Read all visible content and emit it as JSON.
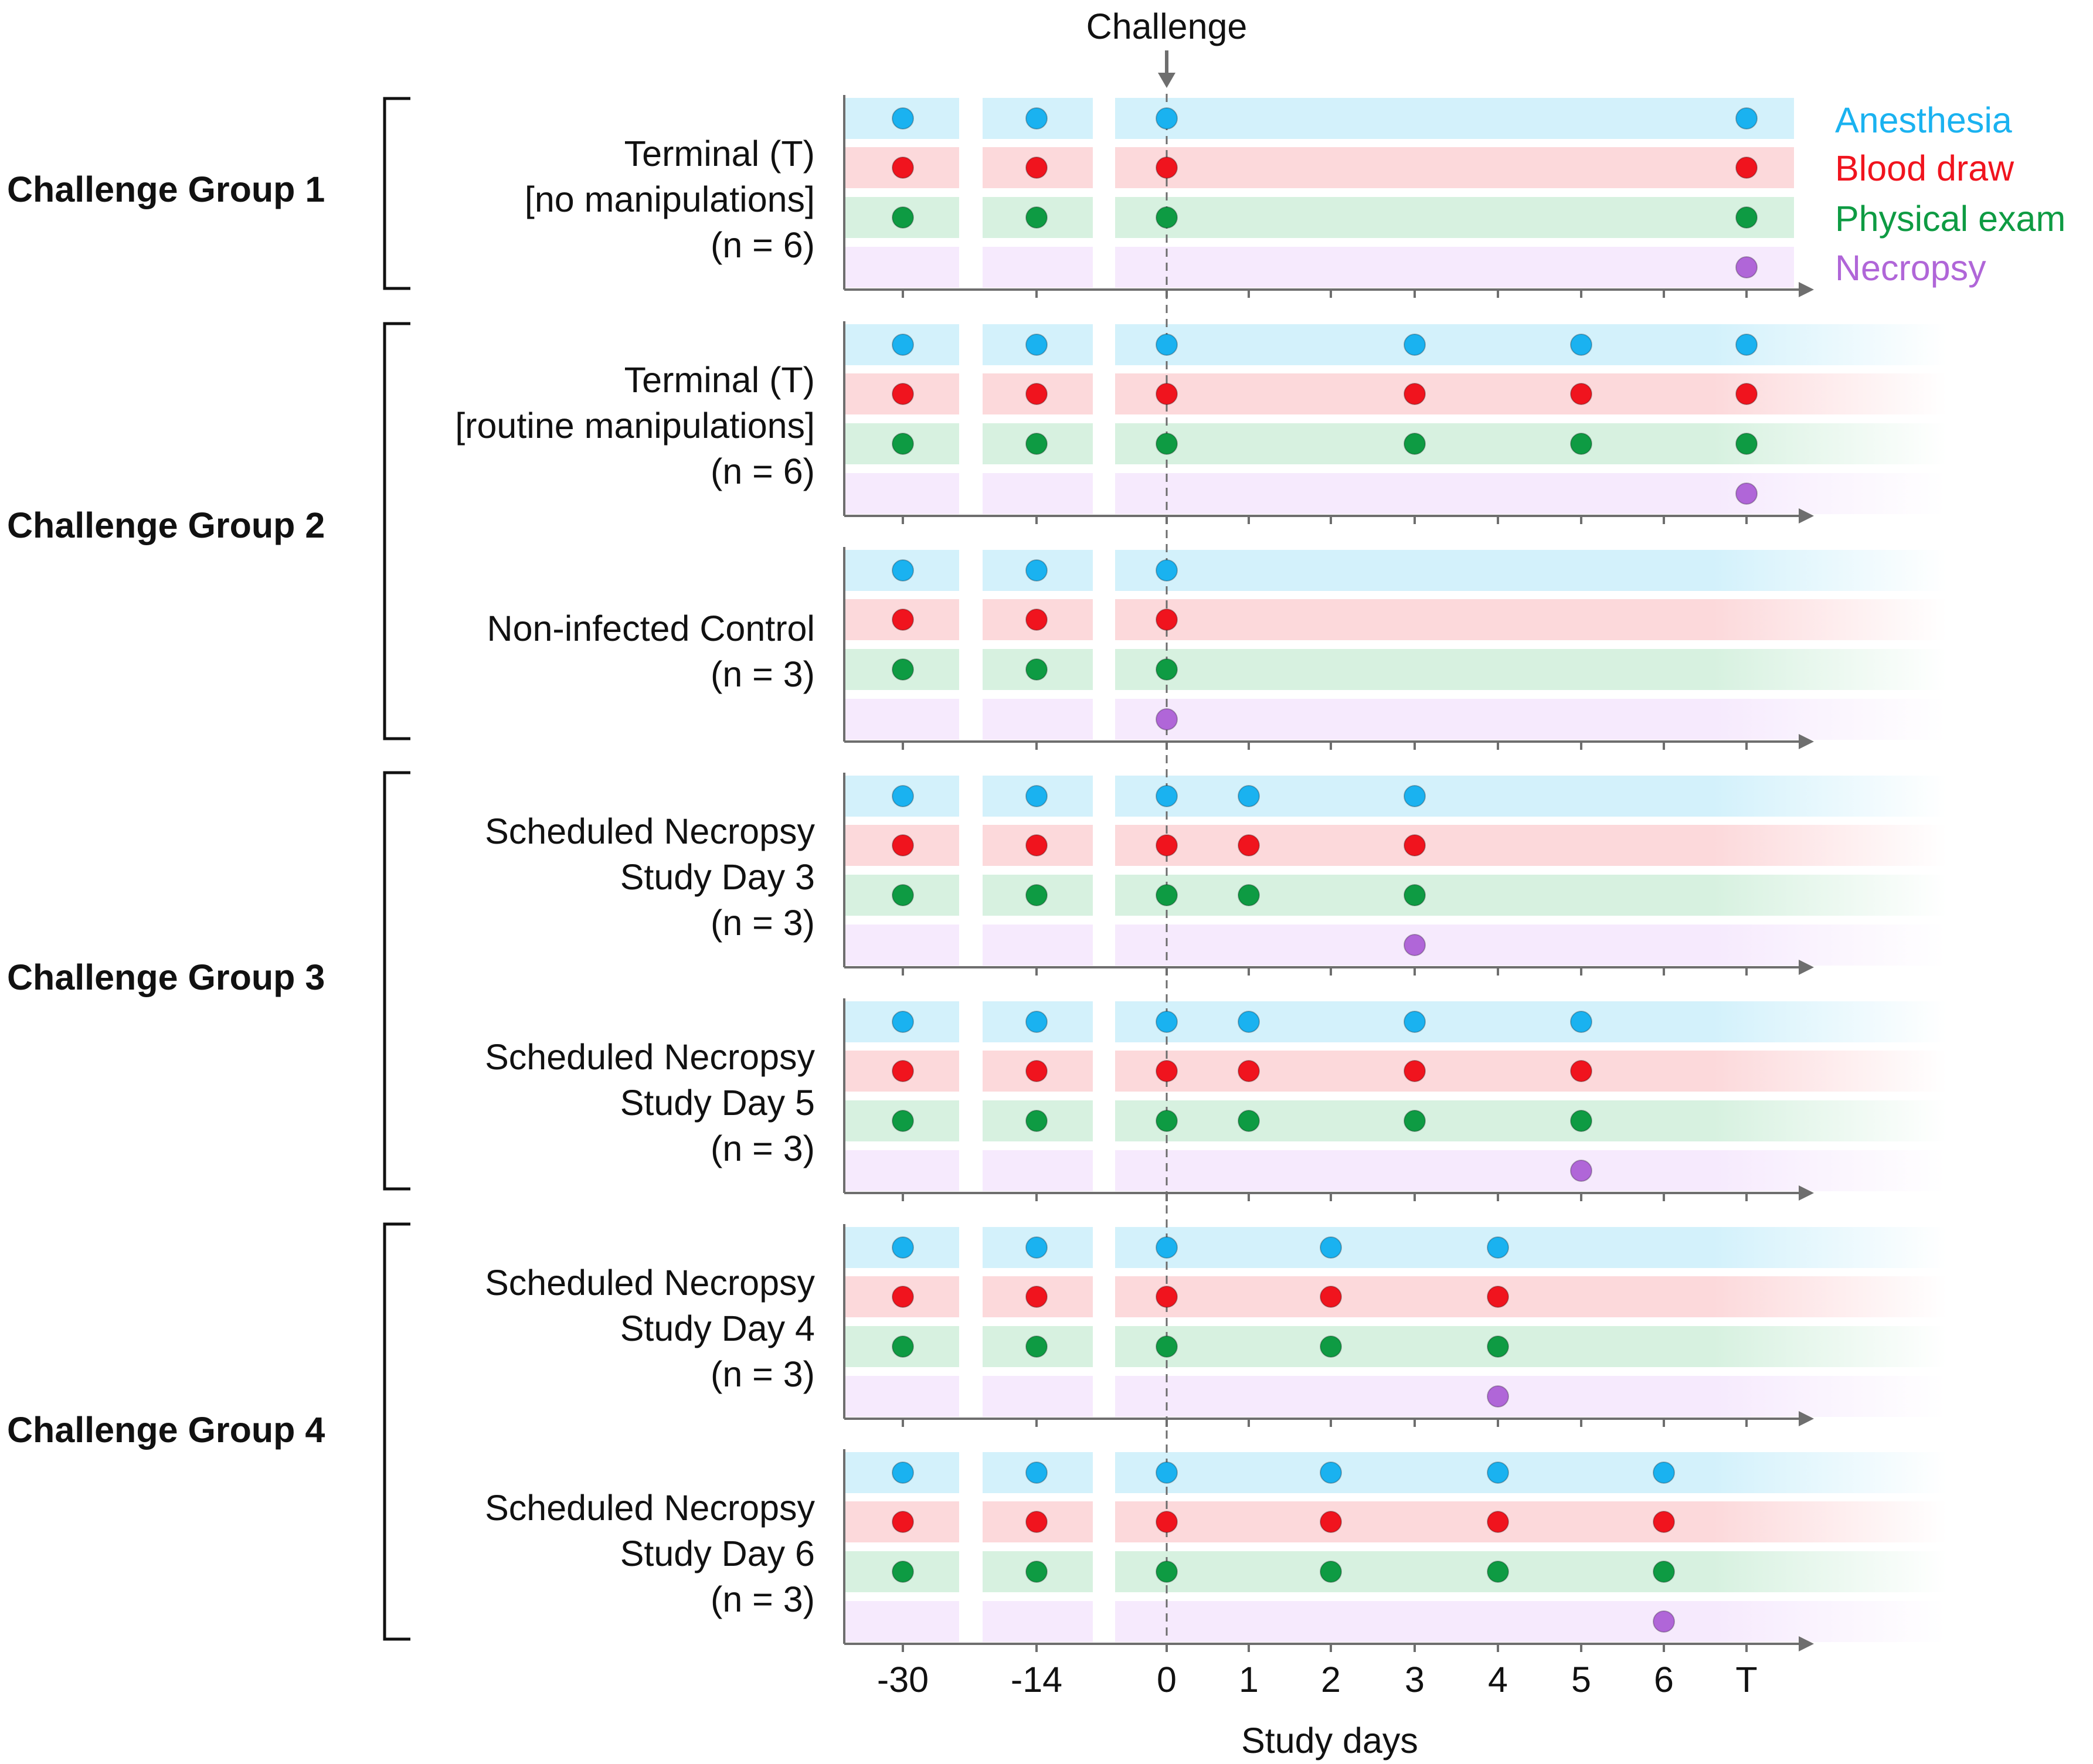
{
  "colors": {
    "anesthesia": "#1ab2f0",
    "blood_draw": "#f0141e",
    "physical_exam": "#0e9b43",
    "necropsy": "#b066d8",
    "anesthesia_band": "#d3f1fb",
    "blood_draw_band": "#fcd9db",
    "physical_exam_band": "#d7f1e0",
    "necropsy_band": "#f6eafd",
    "bracket": "#111111",
    "axis": "#6e6e6e"
  },
  "challenge": {
    "label": "Challenge",
    "day": "0"
  },
  "axis": {
    "title": "Study days",
    "ticks": [
      "-30",
      "-14",
      "0",
      "1",
      "2",
      "3",
      "4",
      "5",
      "6",
      "T"
    ]
  },
  "legend": [
    {
      "key": "anesthesia",
      "label": "Anesthesia",
      "icon": "circle-icon"
    },
    {
      "key": "blood_draw",
      "label": "Blood draw",
      "icon": "circle-icon"
    },
    {
      "key": "physical_exam",
      "label": "Physical exam",
      "icon": "circle-icon"
    },
    {
      "key": "necropsy",
      "label": "Necropsy",
      "icon": "circle-icon"
    }
  ],
  "procedure_rows": [
    "anesthesia",
    "blood_draw",
    "physical_exam",
    "necropsy"
  ],
  "groups": [
    {
      "label": "Challenge Group 1",
      "cohorts": [
        {
          "label_lines": [
            "Terminal (T)",
            "[no manipulations]",
            "(n = 6)"
          ],
          "fade": false,
          "events": {
            "anesthesia": [
              "-30",
              "-14",
              "0",
              "T"
            ],
            "blood_draw": [
              "-30",
              "-14",
              "0",
              "T"
            ],
            "physical_exam": [
              "-30",
              "-14",
              "0",
              "T"
            ],
            "necropsy": [
              "T"
            ]
          }
        }
      ]
    },
    {
      "label": "Challenge Group 2",
      "cohorts": [
        {
          "label_lines": [
            "Terminal (T)",
            "[routine manipulations]",
            "(n = 6)"
          ],
          "fade": true,
          "events": {
            "anesthesia": [
              "-30",
              "-14",
              "0",
              "3",
              "5",
              "T"
            ],
            "blood_draw": [
              "-30",
              "-14",
              "0",
              "3",
              "5",
              "T"
            ],
            "physical_exam": [
              "-30",
              "-14",
              "0",
              "3",
              "5",
              "T"
            ],
            "necropsy": [
              "T"
            ]
          }
        },
        {
          "label_lines": [
            "Non-infected Control",
            "(n = 3)"
          ],
          "fade": true,
          "events": {
            "anesthesia": [
              "-30",
              "-14",
              "0"
            ],
            "blood_draw": [
              "-30",
              "-14",
              "0"
            ],
            "physical_exam": [
              "-30",
              "-14",
              "0"
            ],
            "necropsy": [
              "0"
            ]
          }
        }
      ]
    },
    {
      "label": "Challenge Group 3",
      "cohorts": [
        {
          "label_lines": [
            "Scheduled Necropsy",
            "Study Day 3",
            "(n = 3)"
          ],
          "fade": true,
          "events": {
            "anesthesia": [
              "-30",
              "-14",
              "0",
              "1",
              "3"
            ],
            "blood_draw": [
              "-30",
              "-14",
              "0",
              "1",
              "3"
            ],
            "physical_exam": [
              "-30",
              "-14",
              "0",
              "1",
              "3"
            ],
            "necropsy": [
              "3"
            ]
          }
        },
        {
          "label_lines": [
            "Scheduled Necropsy",
            "Study Day 5",
            "(n = 3)"
          ],
          "fade": true,
          "events": {
            "anesthesia": [
              "-30",
              "-14",
              "0",
              "1",
              "3",
              "5"
            ],
            "blood_draw": [
              "-30",
              "-14",
              "0",
              "1",
              "3",
              "5"
            ],
            "physical_exam": [
              "-30",
              "-14",
              "0",
              "1",
              "3",
              "5"
            ],
            "necropsy": [
              "5"
            ]
          }
        }
      ]
    },
    {
      "label": "Challenge Group 4",
      "cohorts": [
        {
          "label_lines": [
            "Scheduled Necropsy",
            "Study Day 4",
            "(n = 3)"
          ],
          "fade": true,
          "events": {
            "anesthesia": [
              "-30",
              "-14",
              "0",
              "2",
              "4"
            ],
            "blood_draw": [
              "-30",
              "-14",
              "0",
              "2",
              "4"
            ],
            "physical_exam": [
              "-30",
              "-14",
              "0",
              "2",
              "4"
            ],
            "necropsy": [
              "4"
            ]
          }
        },
        {
          "label_lines": [
            "Scheduled Necropsy",
            "Study Day 6",
            "(n = 3)"
          ],
          "fade": true,
          "events": {
            "anesthesia": [
              "-30",
              "-14",
              "0",
              "2",
              "4",
              "6"
            ],
            "blood_draw": [
              "-30",
              "-14",
              "0",
              "2",
              "4",
              "6"
            ],
            "physical_exam": [
              "-30",
              "-14",
              "0",
              "2",
              "4",
              "6"
            ],
            "necropsy": [
              "6"
            ]
          }
        }
      ]
    }
  ]
}
